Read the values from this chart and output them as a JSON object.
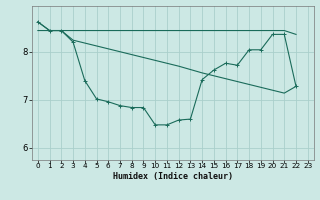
{
  "xlabel": "Humidex (Indice chaleur)",
  "background_color": "#cce8e4",
  "grid_color": "#aacfcb",
  "line_color": "#1a6b5a",
  "x_values": [
    0,
    1,
    2,
    3,
    4,
    5,
    6,
    7,
    8,
    9,
    10,
    11,
    12,
    13,
    14,
    15,
    16,
    17,
    18,
    19,
    20,
    21,
    22,
    23
  ],
  "y_main": [
    8.62,
    8.44,
    8.44,
    8.2,
    7.4,
    7.02,
    6.96,
    6.88,
    6.84,
    6.84,
    6.48,
    6.48,
    6.58,
    6.6,
    7.42,
    7.62,
    7.76,
    7.72,
    8.04,
    8.04,
    8.36,
    8.36,
    7.28,
    null
  ],
  "y_flat": [
    8.44,
    8.44,
    8.44,
    8.44,
    8.44,
    8.44,
    8.44,
    8.44,
    8.44,
    8.44,
    8.44,
    8.44,
    8.44,
    8.44,
    8.44,
    8.44,
    8.44,
    8.44,
    8.44,
    8.44,
    8.44,
    8.44,
    8.36,
    null
  ],
  "y_diag": [
    8.62,
    8.44,
    8.44,
    8.24,
    8.18,
    8.12,
    8.06,
    8.0,
    7.94,
    7.88,
    7.82,
    7.76,
    7.7,
    7.63,
    7.56,
    7.5,
    7.44,
    7.38,
    7.32,
    7.26,
    7.2,
    7.14,
    7.28,
    null
  ],
  "ylim": [
    5.75,
    8.95
  ],
  "yticks": [
    6,
    7,
    8
  ],
  "xlim": [
    -0.5,
    23.5
  ],
  "xticks": [
    0,
    1,
    2,
    3,
    4,
    5,
    6,
    7,
    8,
    9,
    10,
    11,
    12,
    13,
    14,
    15,
    16,
    17,
    18,
    19,
    20,
    21,
    22,
    23
  ],
  "xlabel_fontsize": 6.0,
  "tick_fontsize_x": 5.2,
  "tick_fontsize_y": 6.0
}
